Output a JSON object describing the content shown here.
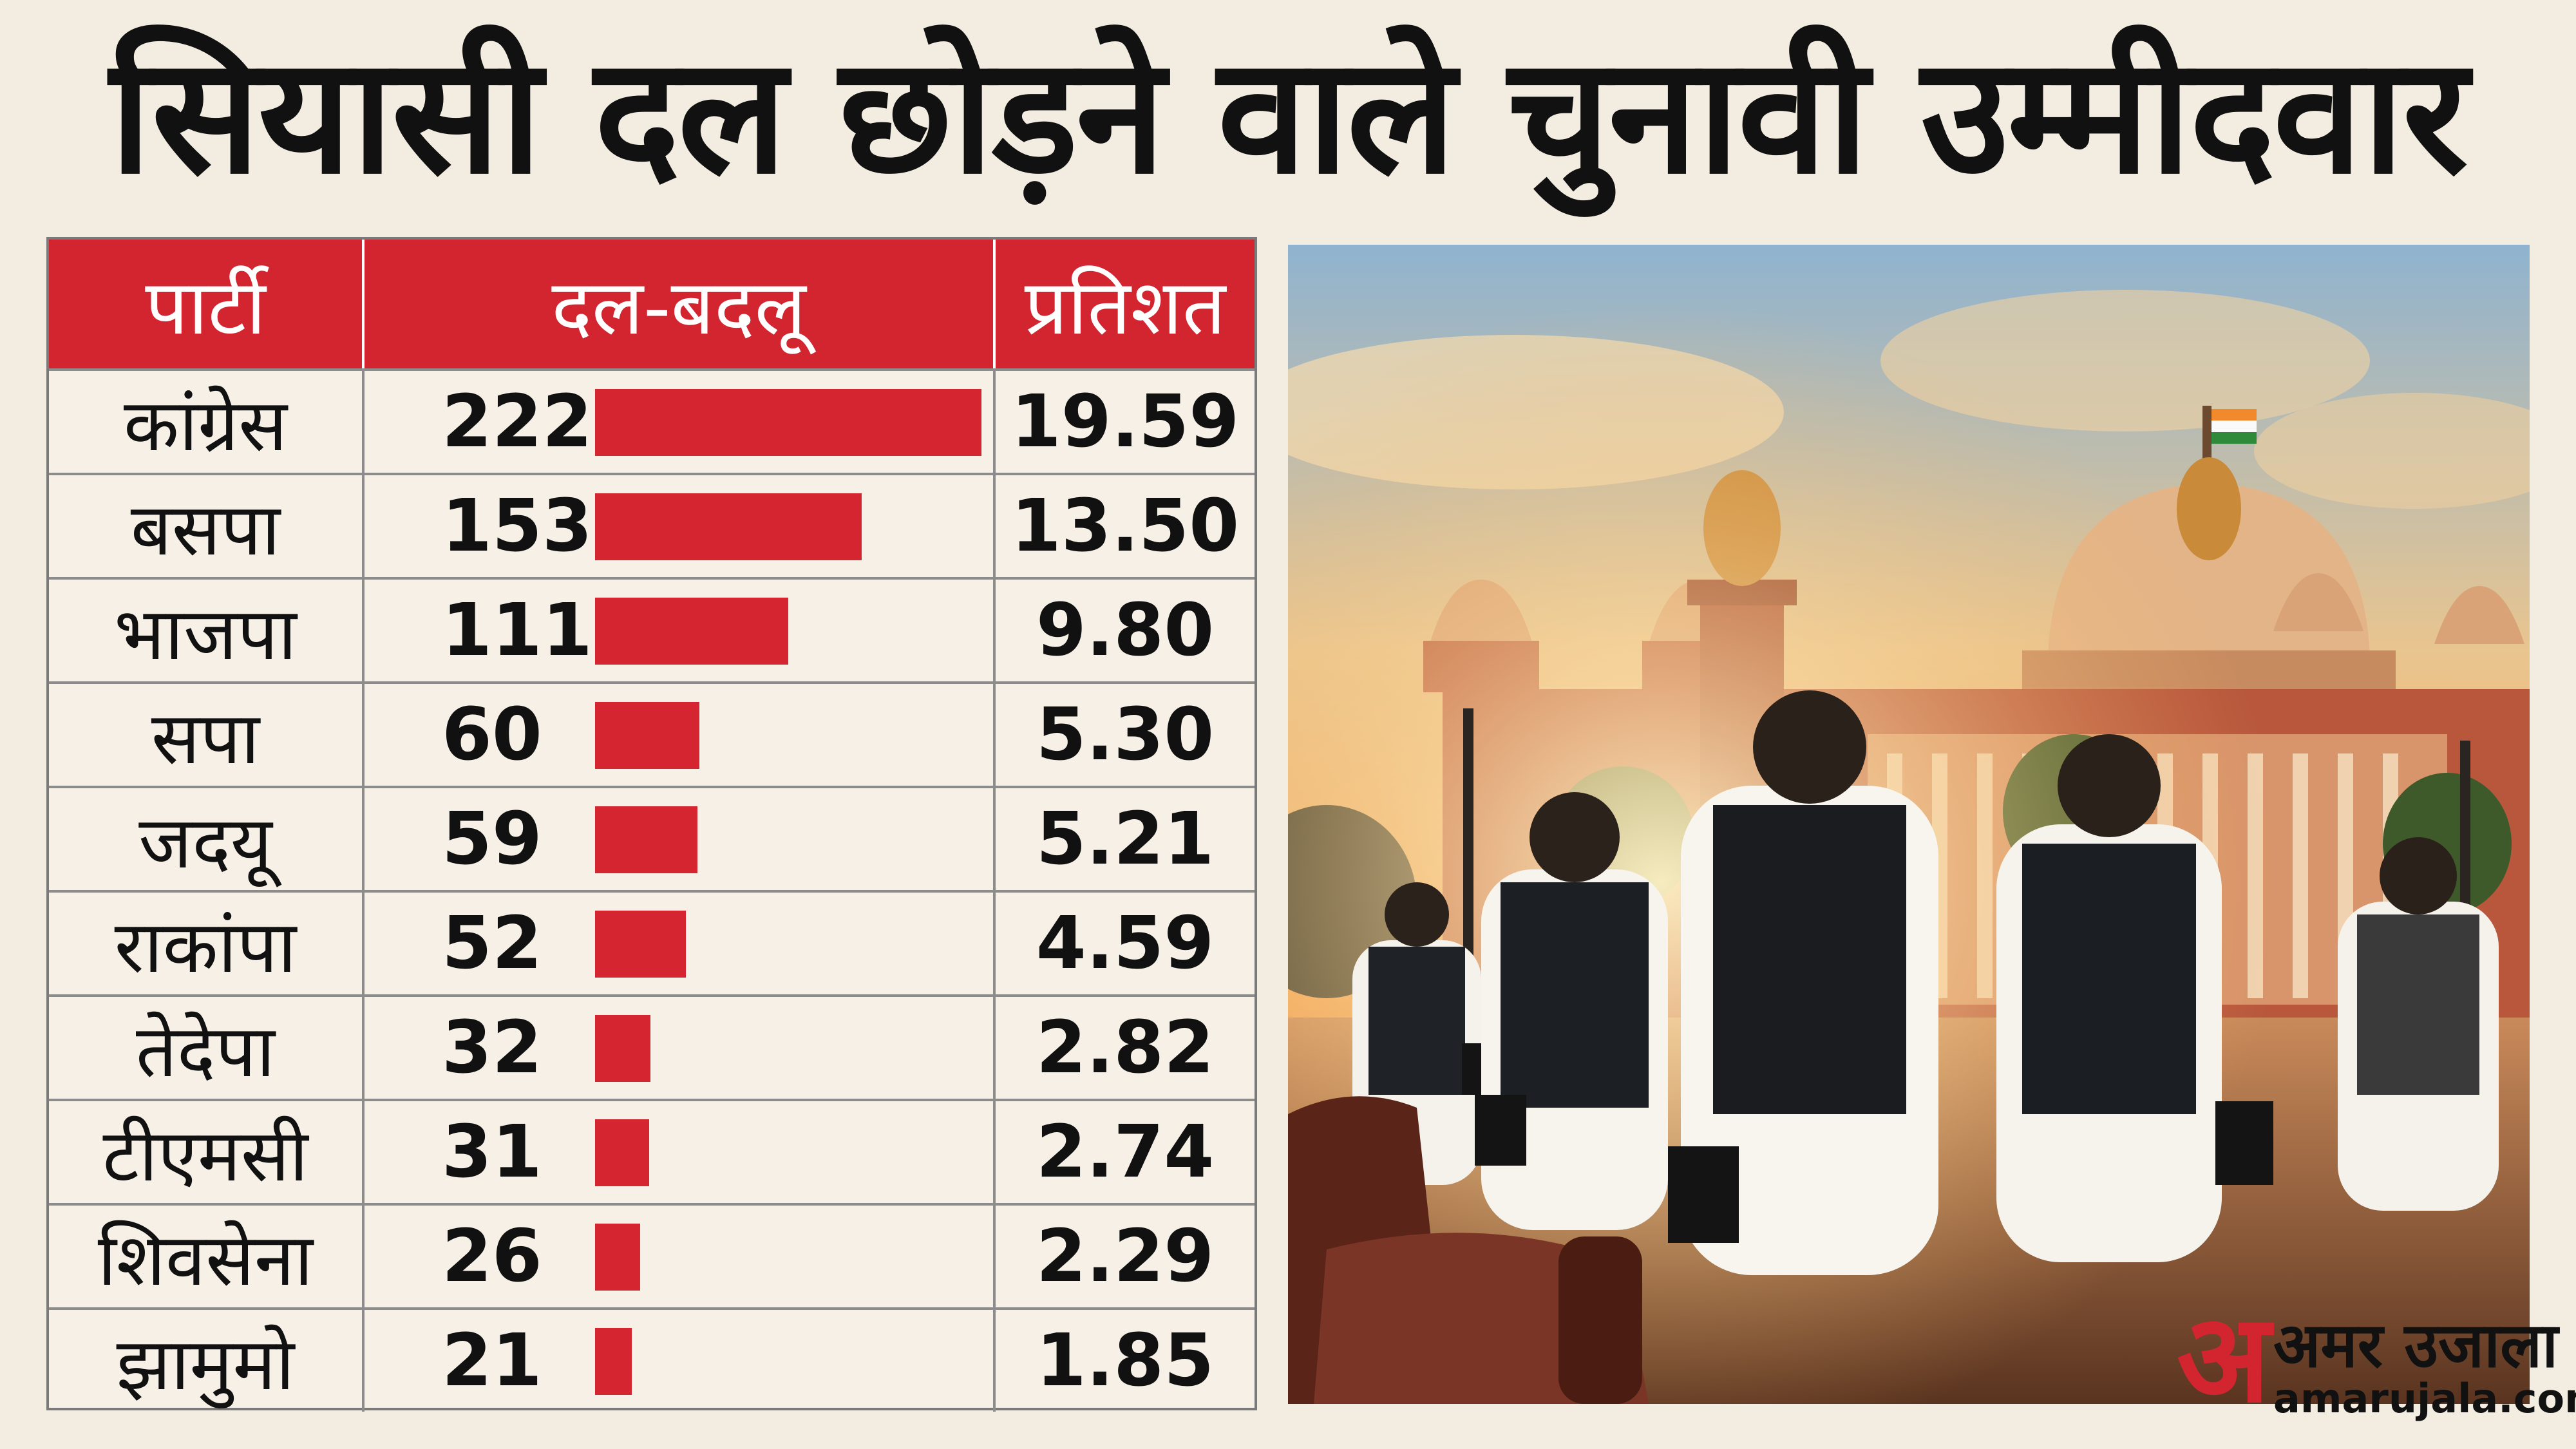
{
  "title": "सियासी दल छोड़ने वाले चुनावी उम्मीदवार",
  "table": {
    "headers": {
      "party": "पार्टी",
      "count": "दल-बदलू",
      "percent": "प्रतिशत"
    }
  },
  "chart_data": {
    "type": "bar",
    "orientation": "horizontal",
    "title": "सियासी दल छोड़ने वाले चुनावी उम्मीदवार",
    "categories": [
      "कांग्रेस",
      "बसपा",
      "भाजपा",
      "सपा",
      "जदयू",
      "राकांपा",
      "तेदेपा",
      "टीएमसी",
      "शिवसेना",
      "झामुमो"
    ],
    "values": [
      222,
      153,
      111,
      60,
      59,
      52,
      32,
      31,
      26,
      21
    ],
    "value_labels": [
      "222",
      "153",
      "111",
      "60",
      "59",
      "52",
      "32",
      "31",
      "26",
      "21"
    ],
    "percent_labels": [
      "19.59",
      "13.50",
      "9.80",
      "5.30",
      "5.21",
      "4.59",
      "2.82",
      "2.74",
      "2.29",
      "1.85"
    ],
    "xlim": [
      0,
      222
    ],
    "bar_color": "#d52530"
  },
  "logo": {
    "name": "अमर उजाला",
    "url": "amarujala.com",
    "mark": "अ",
    "color": "#d32530"
  },
  "colors": {
    "header_bg": "#d32530",
    "background": "#f3ece0"
  }
}
